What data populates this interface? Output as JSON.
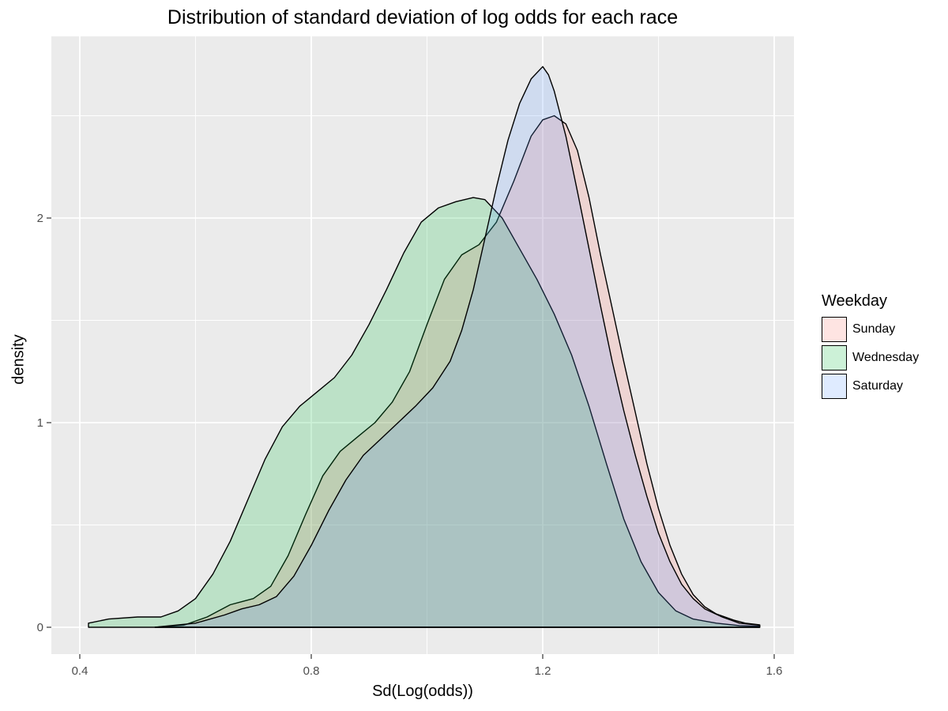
{
  "chart_data": {
    "type": "area",
    "title": "Distribution of standard deviation of log odds for each race",
    "xlabel": "Sd(Log(odds))",
    "ylabel": "density",
    "xlim": [
      0.385,
      1.63
    ],
    "ylim": [
      -0.12,
      2.9
    ],
    "x_ticks": [
      0.4,
      0.8,
      1.2,
      1.6
    ],
    "x_tick_labels": [
      "0.4",
      "0.8",
      "1.2",
      "1.6"
    ],
    "y_ticks": [
      0,
      1,
      2
    ],
    "y_tick_labels": [
      "0",
      "1",
      "2"
    ],
    "grid": true,
    "legend": {
      "title": "Weekday",
      "position": "right"
    },
    "series": [
      {
        "name": "Sunday",
        "color": "#F8766D",
        "x": [
          0.53,
          0.58,
          0.62,
          0.66,
          0.7,
          0.73,
          0.76,
          0.79,
          0.82,
          0.85,
          0.88,
          0.91,
          0.94,
          0.97,
          1.0,
          1.03,
          1.06,
          1.09,
          1.12,
          1.15,
          1.18,
          1.2,
          1.22,
          1.24,
          1.26,
          1.28,
          1.3,
          1.32,
          1.34,
          1.36,
          1.38,
          1.4,
          1.42,
          1.44,
          1.46,
          1.48,
          1.5,
          1.53,
          1.55,
          1.575
        ],
        "y": [
          0.0,
          0.01,
          0.05,
          0.11,
          0.14,
          0.2,
          0.35,
          0.55,
          0.74,
          0.86,
          0.93,
          1.0,
          1.1,
          1.25,
          1.48,
          1.7,
          1.82,
          1.87,
          1.98,
          2.18,
          2.4,
          2.48,
          2.5,
          2.46,
          2.33,
          2.1,
          1.82,
          1.56,
          1.3,
          1.05,
          0.8,
          0.58,
          0.4,
          0.26,
          0.16,
          0.1,
          0.065,
          0.035,
          0.02,
          0.012
        ]
      },
      {
        "name": "Wednesday",
        "color": "#00BA38",
        "x": [
          0.415,
          0.45,
          0.5,
          0.54,
          0.57,
          0.6,
          0.63,
          0.66,
          0.69,
          0.72,
          0.75,
          0.78,
          0.81,
          0.84,
          0.87,
          0.9,
          0.93,
          0.96,
          0.99,
          1.02,
          1.05,
          1.08,
          1.1,
          1.13,
          1.16,
          1.19,
          1.22,
          1.25,
          1.28,
          1.31,
          1.34,
          1.37,
          1.4,
          1.43,
          1.46,
          1.5,
          1.54,
          1.575
        ],
        "y": [
          0.02,
          0.04,
          0.05,
          0.05,
          0.08,
          0.14,
          0.26,
          0.42,
          0.62,
          0.82,
          0.98,
          1.08,
          1.15,
          1.22,
          1.33,
          1.48,
          1.65,
          1.83,
          1.98,
          2.05,
          2.08,
          2.1,
          2.09,
          2.0,
          1.85,
          1.7,
          1.53,
          1.33,
          1.08,
          0.8,
          0.53,
          0.32,
          0.17,
          0.08,
          0.04,
          0.02,
          0.008,
          0.005
        ]
      },
      {
        "name": "Saturday",
        "color": "#619CFF",
        "x": [
          0.53,
          0.6,
          0.65,
          0.68,
          0.71,
          0.74,
          0.77,
          0.8,
          0.83,
          0.86,
          0.89,
          0.92,
          0.95,
          0.98,
          1.01,
          1.04,
          1.06,
          1.08,
          1.1,
          1.12,
          1.14,
          1.16,
          1.18,
          1.2,
          1.21,
          1.22,
          1.24,
          1.26,
          1.28,
          1.3,
          1.32,
          1.34,
          1.36,
          1.38,
          1.4,
          1.42,
          1.44,
          1.46,
          1.48,
          1.51,
          1.54,
          1.575
        ],
        "y": [
          0.0,
          0.02,
          0.06,
          0.09,
          0.11,
          0.15,
          0.25,
          0.4,
          0.57,
          0.72,
          0.84,
          0.92,
          1.0,
          1.08,
          1.17,
          1.3,
          1.45,
          1.65,
          1.9,
          2.15,
          2.38,
          2.56,
          2.68,
          2.74,
          2.7,
          2.62,
          2.4,
          2.13,
          1.85,
          1.57,
          1.3,
          1.06,
          0.84,
          0.64,
          0.46,
          0.32,
          0.21,
          0.14,
          0.09,
          0.05,
          0.02,
          0.01
        ]
      }
    ]
  }
}
